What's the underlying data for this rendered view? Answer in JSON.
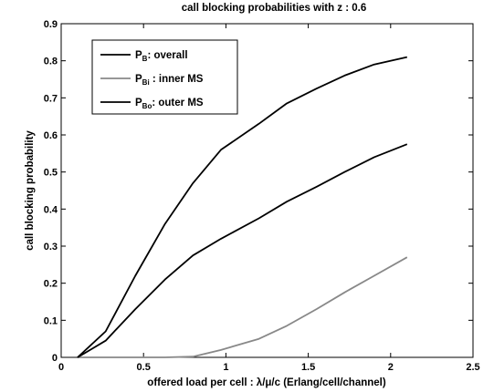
{
  "chart_data": {
    "type": "line",
    "title": "call blocking probabilities with z : 0.6",
    "xlabel": "offered load per cell : λ/μ/c (Erlang/cell/channel)",
    "ylabel": "call blocking probability",
    "xlim": [
      0,
      2.5
    ],
    "ylim": [
      0,
      0.9
    ],
    "xticks": [
      0,
      0.5,
      1,
      1.5,
      2,
      2.5
    ],
    "yticks": [
      0,
      0.1,
      0.2,
      0.3,
      0.4,
      0.5,
      0.6,
      0.7,
      0.8,
      0.9
    ],
    "grid": false,
    "legend_position": "top-left",
    "series": [
      {
        "name": "P_B: overall",
        "label_main": "P",
        "label_sub": "B",
        "label_rest": ": overall",
        "color": "#000000",
        "x": [
          0.1,
          0.27,
          0.45,
          0.63,
          0.8,
          0.97,
          1.2,
          1.37,
          1.55,
          1.72,
          1.9,
          2.1
        ],
        "y": [
          0.0,
          0.07,
          0.22,
          0.36,
          0.47,
          0.56,
          0.63,
          0.685,
          0.725,
          0.76,
          0.79,
          0.81
        ]
      },
      {
        "name": "P_Bi : inner MS",
        "label_main": "P",
        "label_sub": "Bi",
        "label_rest": " : inner MS",
        "color": "#888888",
        "x": [
          0.1,
          0.27,
          0.45,
          0.63,
          0.8,
          0.97,
          1.2,
          1.37,
          1.55,
          1.72,
          1.9,
          2.1
        ],
        "y": [
          0.0,
          0.0,
          0.0,
          0.0,
          0.002,
          0.02,
          0.05,
          0.085,
          0.13,
          0.175,
          0.22,
          0.27
        ]
      },
      {
        "name": "P_Bo: outer MS",
        "label_main": "P",
        "label_sub": "Bo",
        "label_rest": ": outer MS",
        "color": "#000000",
        "x": [
          0.1,
          0.27,
          0.45,
          0.63,
          0.8,
          0.97,
          1.2,
          1.37,
          1.55,
          1.72,
          1.9,
          2.1
        ],
        "y": [
          0.0,
          0.045,
          0.13,
          0.21,
          0.275,
          0.32,
          0.375,
          0.42,
          0.46,
          0.5,
          0.54,
          0.575
        ]
      }
    ]
  }
}
